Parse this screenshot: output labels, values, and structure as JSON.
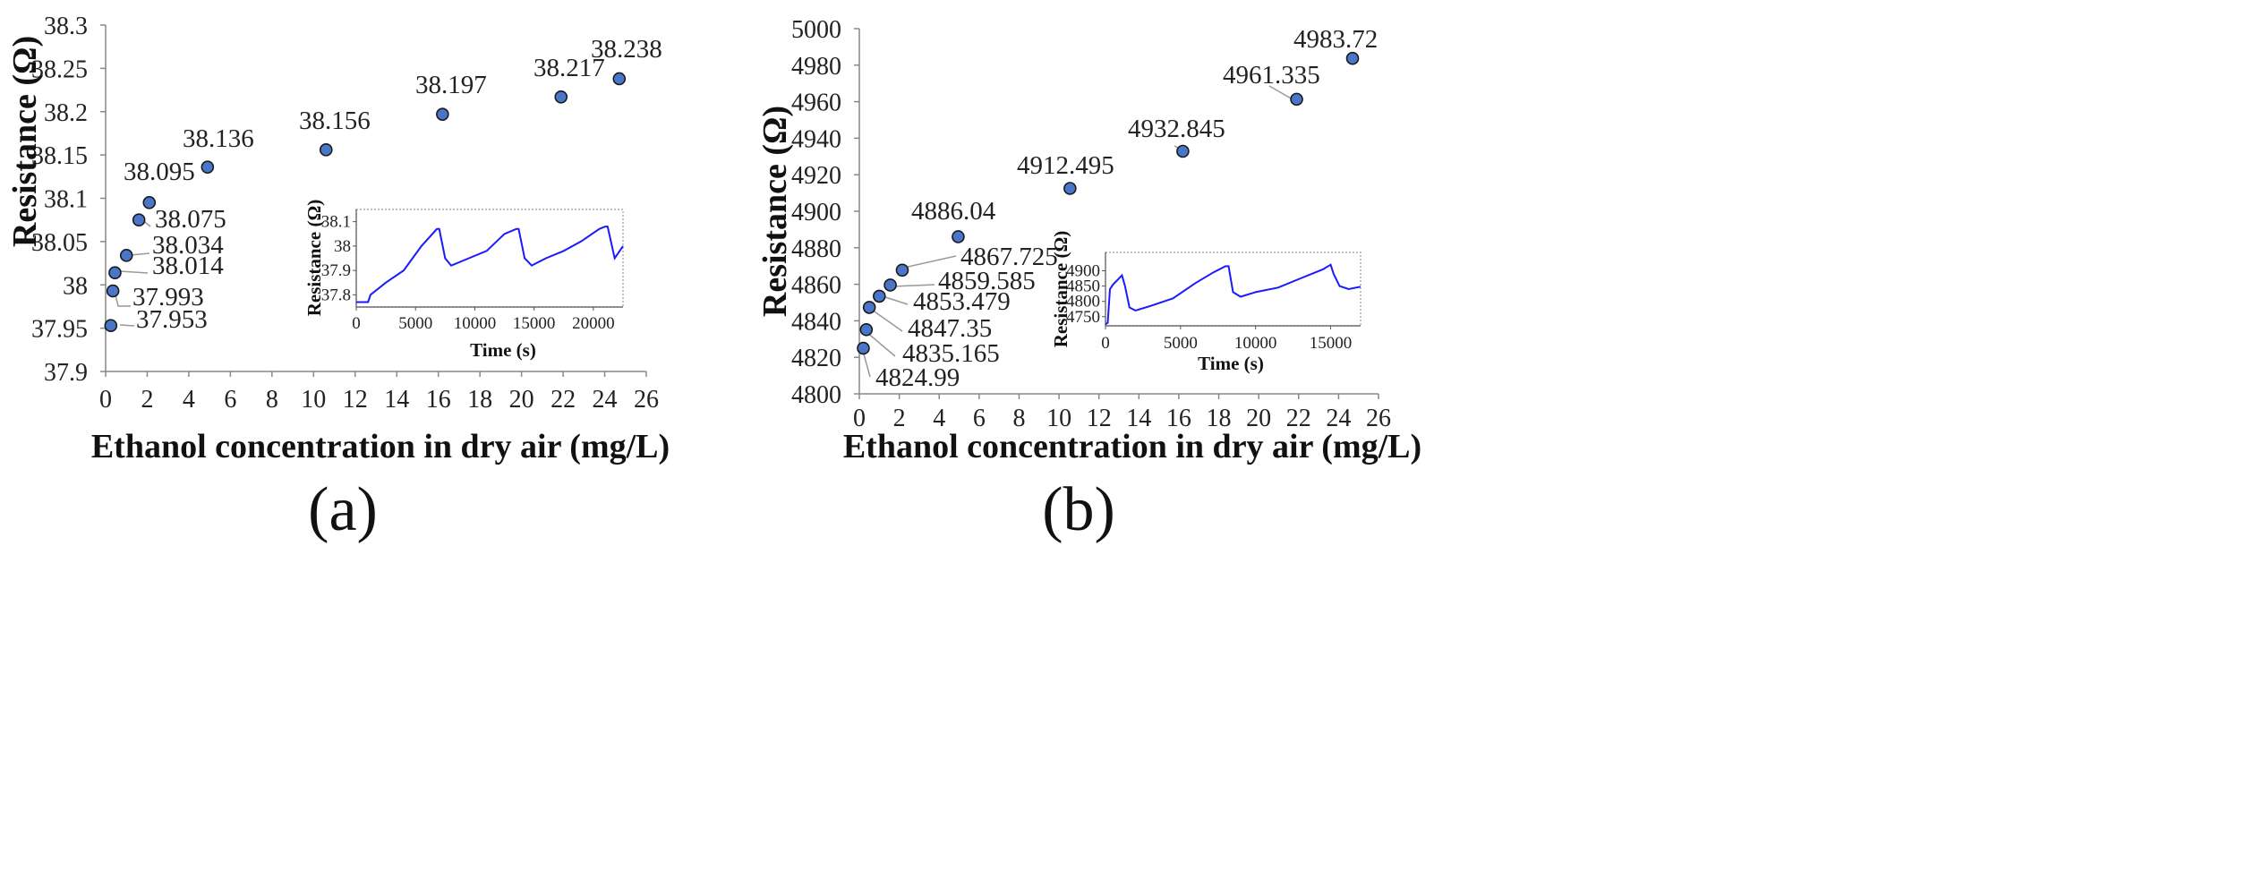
{
  "colors": {
    "marker_fill": "#4a76c9",
    "marker_stroke": "#1a1a1a",
    "inset_line": "#1a1aff",
    "axis": "#888888"
  },
  "chart_data": [
    {
      "type": "scatter",
      "panel_label": "(a)",
      "xlabel": "Ethanol concentration in dry air (mg/L)",
      "ylabel": "Resistance (Ω)",
      "xlim": [
        0,
        26
      ],
      "ylim": [
        37.9,
        38.3
      ],
      "xticks": [
        "0",
        "2",
        "4",
        "6",
        "8",
        "10",
        "12",
        "14",
        "16",
        "18",
        "20",
        "22",
        "24",
        "26"
      ],
      "yticks": [
        "38.3",
        "38.25",
        "38.2",
        "38.15",
        "38.1",
        "38.05",
        "38",
        "37.95",
        "37.9"
      ],
      "points": [
        {
          "x": 0.25,
          "y": 37.953,
          "label": "37.953"
        },
        {
          "x": 0.35,
          "y": 37.993,
          "label": "37.993"
        },
        {
          "x": 0.45,
          "y": 38.014,
          "label": "38.014"
        },
        {
          "x": 1.0,
          "y": 38.034,
          "label": "38.034"
        },
        {
          "x": 1.6,
          "y": 38.075,
          "label": "38.075"
        },
        {
          "x": 2.1,
          "y": 38.095,
          "label": "38.095"
        },
        {
          "x": 4.9,
          "y": 38.136,
          "label": "38.136"
        },
        {
          "x": 10.6,
          "y": 38.156,
          "label": "38.156"
        },
        {
          "x": 16.2,
          "y": 38.197,
          "label": "38.197"
        },
        {
          "x": 21.9,
          "y": 38.217,
          "label": "38.217"
        },
        {
          "x": 24.7,
          "y": 38.238,
          "label": "38.238"
        }
      ],
      "inset": {
        "type": "line",
        "xlabel": "Time (s)",
        "ylabel": "Resistance (Ω)",
        "xlim": [
          0,
          22500
        ],
        "ylim": [
          37.75,
          38.15
        ],
        "xticks": [
          "0",
          "5000",
          "10000",
          "15000",
          "20000"
        ],
        "yticks": [
          "38.1",
          "38",
          "37.9",
          "37.8"
        ],
        "x": [
          0,
          1000,
          1200,
          2500,
          4000,
          5500,
          6800,
          7000,
          7500,
          8000,
          9500,
          11000,
          12500,
          13500,
          13700,
          14200,
          14800,
          16000,
          17500,
          19000,
          20500,
          21000,
          21200,
          21800,
          22500
        ],
        "y": [
          37.77,
          37.77,
          37.8,
          37.85,
          37.9,
          38.0,
          38.07,
          38.07,
          37.95,
          37.92,
          37.95,
          37.98,
          38.05,
          38.07,
          38.07,
          37.95,
          37.92,
          37.95,
          37.98,
          38.02,
          38.07,
          38.08,
          38.08,
          37.95,
          38.0
        ]
      }
    },
    {
      "type": "scatter",
      "panel_label": "(b)",
      "xlabel": "Ethanol concentration in dry air (mg/L)",
      "ylabel": "Resistance (Ω)",
      "xlim": [
        0,
        26
      ],
      "ylim": [
        4800,
        5000
      ],
      "xticks": [
        "0",
        "2",
        "4",
        "6",
        "8",
        "10",
        "12",
        "14",
        "16",
        "18",
        "20",
        "22",
        "24",
        "26"
      ],
      "yticks": [
        "5000",
        "4980",
        "4960",
        "4940",
        "4920",
        "4900",
        "4880",
        "4860",
        "4840",
        "4820",
        "4800"
      ],
      "points": [
        {
          "x": 0.2,
          "y": 4824.99,
          "label": "4824.99"
        },
        {
          "x": 0.35,
          "y": 4835.165,
          "label": "4835.165"
        },
        {
          "x": 0.5,
          "y": 4847.35,
          "label": "4847.35"
        },
        {
          "x": 1.0,
          "y": 4853.479,
          "label": "4853.479"
        },
        {
          "x": 1.55,
          "y": 4859.585,
          "label": "4859.585"
        },
        {
          "x": 2.15,
          "y": 4867.725,
          "label": "4867.725"
        },
        {
          "x": 4.95,
          "y": 4886.04,
          "label": "4886.04"
        },
        {
          "x": 10.55,
          "y": 4912.495,
          "label": "4912.495"
        },
        {
          "x": 16.2,
          "y": 4932.845,
          "label": "4932.845"
        },
        {
          "x": 21.9,
          "y": 4961.335,
          "label": "4961.335"
        },
        {
          "x": 24.7,
          "y": 4983.72,
          "label": "4983.72"
        }
      ],
      "inset": {
        "type": "line",
        "xlabel": "Time (s)",
        "ylabel": "Resistance (Ω)",
        "xlim": [
          0,
          17000
        ],
        "ylim": [
          4720,
          4960
        ],
        "xticks": [
          "0",
          "5000",
          "10000",
          "15000"
        ],
        "yticks": [
          "4900",
          "4850",
          "4800",
          "4750"
        ],
        "x": [
          0,
          150,
          300,
          500,
          800,
          1100,
          1300,
          1600,
          2000,
          3000,
          4500,
          6000,
          7200,
          8000,
          8200,
          8500,
          9000,
          10000,
          11500,
          13000,
          14500,
          15000,
          15200,
          15600,
          16200,
          17000
        ],
        "y": [
          4725,
          4730,
          4840,
          4855,
          4870,
          4885,
          4850,
          4780,
          4770,
          4785,
          4810,
          4860,
          4895,
          4915,
          4915,
          4830,
          4815,
          4830,
          4845,
          4875,
          4905,
          4920,
          4890,
          4850,
          4840,
          4848
        ]
      }
    }
  ]
}
